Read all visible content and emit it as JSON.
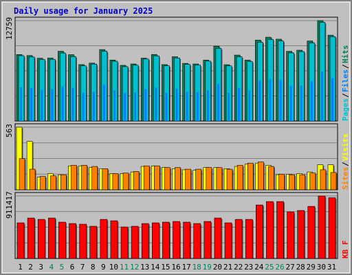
{
  "colors": {
    "background": "#c0c0c0",
    "plot_background": "#c0c0c0",
    "title": "#0000c0",
    "hits": "#00805c",
    "files": "#0080ff",
    "pages": "#00c0d0",
    "visits": "#ffff00",
    "sites": "#ff8000",
    "kbytes": "#ff0000",
    "weekend_label": "#00805c",
    "weekday_label": "#000000"
  },
  "chart_data": [
    {
      "type": "bar",
      "title": "Daily usage for January 2025",
      "ylabel_max": "12759",
      "ymax": 12759,
      "legend": [
        "Pages",
        "Files",
        "Hits"
      ],
      "categories": [
        "1",
        "2",
        "3",
        "4",
        "5",
        "6",
        "7",
        "8",
        "9",
        "10",
        "11",
        "12",
        "13",
        "14",
        "15",
        "16",
        "17",
        "18",
        "19",
        "20",
        "21",
        "22",
        "23",
        "24",
        "25",
        "26",
        "27",
        "28",
        "29",
        "30",
        "31"
      ],
      "weekend_days": [
        "4",
        "5",
        "11",
        "12",
        "18",
        "19",
        "25",
        "26"
      ],
      "series": [
        {
          "name": "Hits",
          "values": [
            8450,
            8320,
            7980,
            8000,
            8870,
            8430,
            7170,
            7360,
            9080,
            7750,
            7080,
            7250,
            7990,
            8460,
            7170,
            8170,
            7330,
            7250,
            7740,
            9510,
            7160,
            8380,
            7740,
            10290,
            10650,
            10400,
            8860,
            9000,
            10170,
            12759,
            10910
          ]
        },
        {
          "name": "Files",
          "values": [
            8300,
            8140,
            7820,
            7840,
            8640,
            8180,
            7010,
            7240,
            8870,
            7600,
            6910,
            7100,
            7880,
            8280,
            7020,
            8010,
            7200,
            7110,
            7610,
            9240,
            7010,
            8160,
            7560,
            10010,
            10380,
            10170,
            8660,
            8820,
            9920,
            12540,
            10720
          ]
        },
        {
          "name": "Pages",
          "values": [
            4300,
            4200,
            4000,
            4050,
            4400,
            4200,
            3600,
            3700,
            4600,
            3900,
            3550,
            3650,
            4050,
            4250,
            3600,
            4100,
            3700,
            3650,
            3900,
            4750,
            3600,
            4200,
            3900,
            5100,
            5300,
            5200,
            4450,
            4500,
            5050,
            6300,
            5450
          ]
        }
      ]
    },
    {
      "type": "bar",
      "ylabel_max": "563",
      "ymax": 563,
      "legend": [
        "Sites",
        "Visits"
      ],
      "categories": [
        "1",
        "2",
        "3",
        "4",
        "5",
        "6",
        "7",
        "8",
        "9",
        "10",
        "11",
        "12",
        "13",
        "14",
        "15",
        "16",
        "17",
        "18",
        "19",
        "20",
        "21",
        "22",
        "23",
        "24",
        "25",
        "26",
        "27",
        "28",
        "29",
        "30",
        "31"
      ],
      "series": [
        {
          "name": "Visits",
          "values": [
            563,
            435,
            115,
            145,
            135,
            215,
            215,
            200,
            190,
            145,
            145,
            160,
            210,
            215,
            200,
            190,
            180,
            175,
            200,
            200,
            190,
            210,
            230,
            240,
            220,
            135,
            140,
            145,
            160,
            225,
            225
          ]
        },
        {
          "name": "Sites",
          "values": [
            280,
            185,
            120,
            125,
            135,
            220,
            220,
            210,
            190,
            145,
            150,
            165,
            215,
            215,
            200,
            200,
            185,
            185,
            200,
            200,
            185,
            220,
            240,
            250,
            210,
            140,
            135,
            135,
            150,
            180,
            155
          ]
        }
      ]
    },
    {
      "type": "bar",
      "ylabel_max": "911417",
      "ymax": 911417,
      "legend": [
        "KB F"
      ],
      "categories": [
        "1",
        "2",
        "3",
        "4",
        "5",
        "6",
        "7",
        "8",
        "9",
        "10",
        "11",
        "12",
        "13",
        "14",
        "15",
        "16",
        "17",
        "18",
        "19",
        "20",
        "21",
        "22",
        "23",
        "24",
        "25",
        "26",
        "27",
        "28",
        "29",
        "30",
        "31"
      ],
      "series": [
        {
          "name": "KB F",
          "values": [
            520000,
            590000,
            570000,
            590000,
            530000,
            510000,
            500000,
            470000,
            570000,
            550000,
            460000,
            470000,
            510000,
            520000,
            530000,
            540000,
            530000,
            510000,
            540000,
            590000,
            520000,
            570000,
            570000,
            780000,
            830000,
            830000,
            680000,
            700000,
            760000,
            911417,
            885000
          ]
        }
      ]
    }
  ]
}
